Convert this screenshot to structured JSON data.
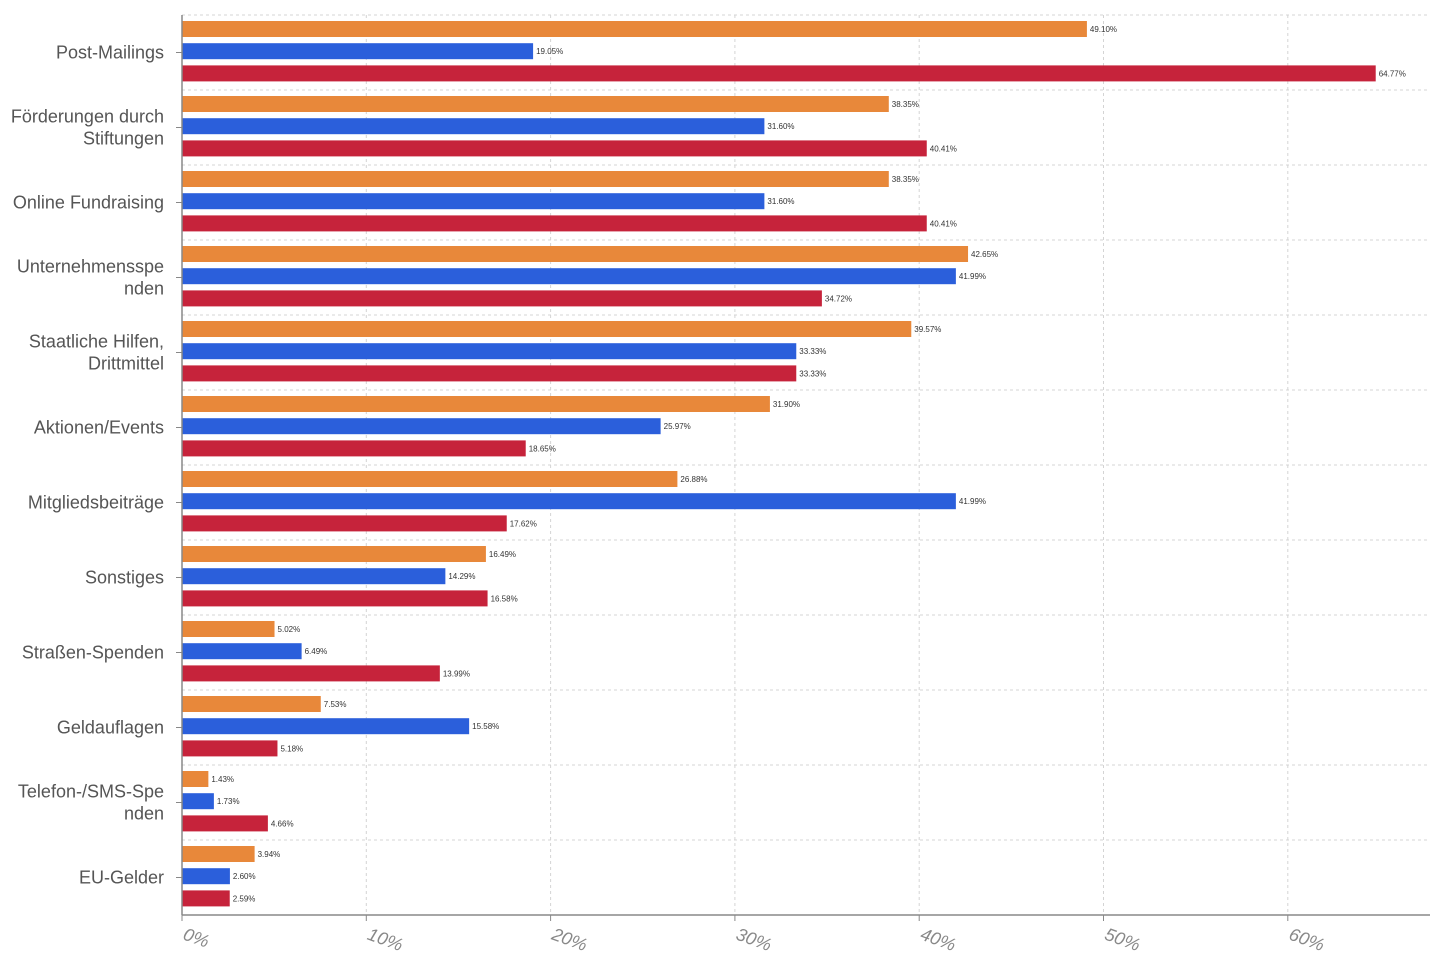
{
  "chart_data": {
    "type": "bar",
    "orientation": "horizontal",
    "title": "",
    "xlabel": "",
    "ylabel": "",
    "xlim": [
      0,
      68
    ],
    "grid": true,
    "legend": "none",
    "ticks": [
      {
        "value": 0,
        "label": "0%"
      },
      {
        "value": 10,
        "label": "10%"
      },
      {
        "value": 20,
        "label": "20%"
      },
      {
        "value": 30,
        "label": "30%"
      },
      {
        "value": 40,
        "label": "40%"
      },
      {
        "value": 50,
        "label": "50%"
      },
      {
        "value": 60,
        "label": "60%"
      }
    ],
    "categories": [
      {
        "lines": [
          "Post-Mailings"
        ]
      },
      {
        "lines": [
          "Förderungen durch",
          "Stiftungen"
        ]
      },
      {
        "lines": [
          "Online Fundraising"
        ]
      },
      {
        "lines": [
          "Unternehmensspe",
          "nden"
        ]
      },
      {
        "lines": [
          "Staatliche Hilfen,",
          "Drittmittel"
        ]
      },
      {
        "lines": [
          "Aktionen/Events"
        ]
      },
      {
        "lines": [
          "Mitgliedsbeiträge"
        ]
      },
      {
        "lines": [
          "Sonstiges"
        ]
      },
      {
        "lines": [
          "Straßen-Spenden"
        ]
      },
      {
        "lines": [
          "Geldauflagen"
        ]
      },
      {
        "lines": [
          "Telefon-/SMS-Spe",
          "nden"
        ]
      },
      {
        "lines": [
          "EU-Gelder"
        ]
      }
    ],
    "series": [
      {
        "name": "series-orange",
        "color": "#E8883A",
        "values": [
          49.1,
          38.35,
          38.35,
          42.65,
          39.57,
          31.9,
          26.88,
          16.49,
          5.02,
          7.53,
          1.43,
          3.94
        ],
        "labels": [
          "49.10%",
          "38.35%",
          "38.35%",
          "42.65%",
          "39.57%",
          "31.90%",
          "26.88%",
          "16.49%",
          "5.02%",
          "7.53%",
          "1.43%",
          "3.94%"
        ]
      },
      {
        "name": "series-blue",
        "color": "#2B5FDB",
        "values": [
          19.05,
          31.6,
          31.6,
          41.99,
          33.33,
          25.97,
          41.99,
          14.29,
          6.49,
          15.58,
          1.73,
          2.6
        ],
        "labels": [
          "19.05%",
          "31.60%",
          "31.60%",
          "41.99%",
          "33.33%",
          "25.97%",
          "41.99%",
          "14.29%",
          "6.49%",
          "15.58%",
          "1.73%",
          "2.60%"
        ]
      },
      {
        "name": "series-red",
        "color": "#C6233B",
        "values": [
          64.77,
          40.41,
          40.41,
          34.72,
          33.33,
          18.65,
          17.62,
          16.58,
          13.99,
          5.18,
          4.66,
          2.59
        ],
        "labels": [
          "64.77%",
          "40.41%",
          "40.41%",
          "34.72%",
          "33.33%",
          "18.65%",
          "17.62%",
          "16.58%",
          "13.99%",
          "5.18%",
          "4.66%",
          "2.59%"
        ]
      }
    ]
  }
}
